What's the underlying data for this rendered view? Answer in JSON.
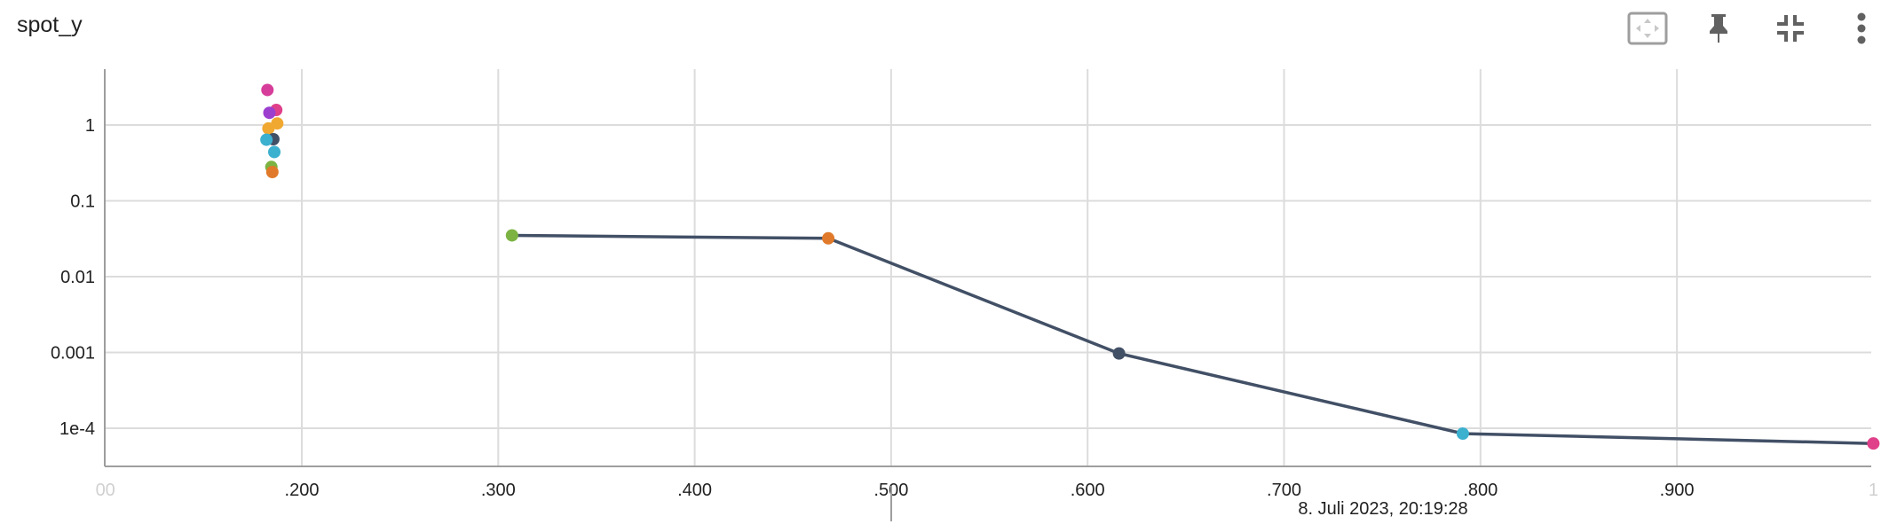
{
  "title": "spot_y",
  "toolbar": {
    "fit_icon": "fit-to-domain-icon",
    "pin_icon": "pin-icon",
    "collapse_icon": "collapse-icon",
    "more_icon": "more-vert-icon"
  },
  "hover_label": "8. Juli 2023, 20:19:28",
  "chart_data": {
    "type": "scatter",
    "yscale": "log",
    "xlim": [
      0.09,
      1.0
    ],
    "ylim_log10": [
      -4.5,
      0.75
    ],
    "grid": true,
    "x_ticks": [
      ".200",
      ".300",
      ".400",
      ".500",
      ".600",
      ".700",
      ".800",
      ".900"
    ],
    "x_ticks_faded": [
      {
        "label": "00",
        "x": 0.1
      },
      {
        "label": "1",
        "x": 1.0
      }
    ],
    "y_ticks": [
      {
        "label": "1",
        "value": 1
      },
      {
        "label": "0.1",
        "value": 0.1
      },
      {
        "label": "0.01",
        "value": 0.01
      },
      {
        "label": "0.001",
        "value": 0.001
      },
      {
        "label": "1e-4",
        "value": 0.0001
      }
    ],
    "line_color": "#425066",
    "line_series": [
      {
        "x": 0.307,
        "y": 0.035,
        "color": "#7cb342"
      },
      {
        "x": 0.468,
        "y": 0.032,
        "color": "#e07a2a"
      },
      {
        "x": 0.616,
        "y": 0.00097,
        "color": "#425066"
      },
      {
        "x": 0.791,
        "y": 8.5e-05,
        "color": "#3cb0cf"
      },
      {
        "x": 1.0,
        "y": 6.3e-05,
        "color": "#e0408a"
      }
    ],
    "cluster_points": [
      {
        "x": 0.1825,
        "y": 2.9,
        "color": "#d63d9a"
      },
      {
        "x": 0.187,
        "y": 1.58,
        "color": "#e0408a"
      },
      {
        "x": 0.1835,
        "y": 1.45,
        "color": "#9c3fcf"
      },
      {
        "x": 0.1875,
        "y": 1.05,
        "color": "#f0a830"
      },
      {
        "x": 0.183,
        "y": 0.9,
        "color": "#f0a830"
      },
      {
        "x": 0.1855,
        "y": 0.65,
        "color": "#425066"
      },
      {
        "x": 0.182,
        "y": 0.64,
        "color": "#3cb0cf"
      },
      {
        "x": 0.186,
        "y": 0.44,
        "color": "#3cb0cf"
      },
      {
        "x": 0.1845,
        "y": 0.28,
        "color": "#7cb342"
      },
      {
        "x": 0.185,
        "y": 0.24,
        "color": "#e07a2a"
      }
    ]
  }
}
